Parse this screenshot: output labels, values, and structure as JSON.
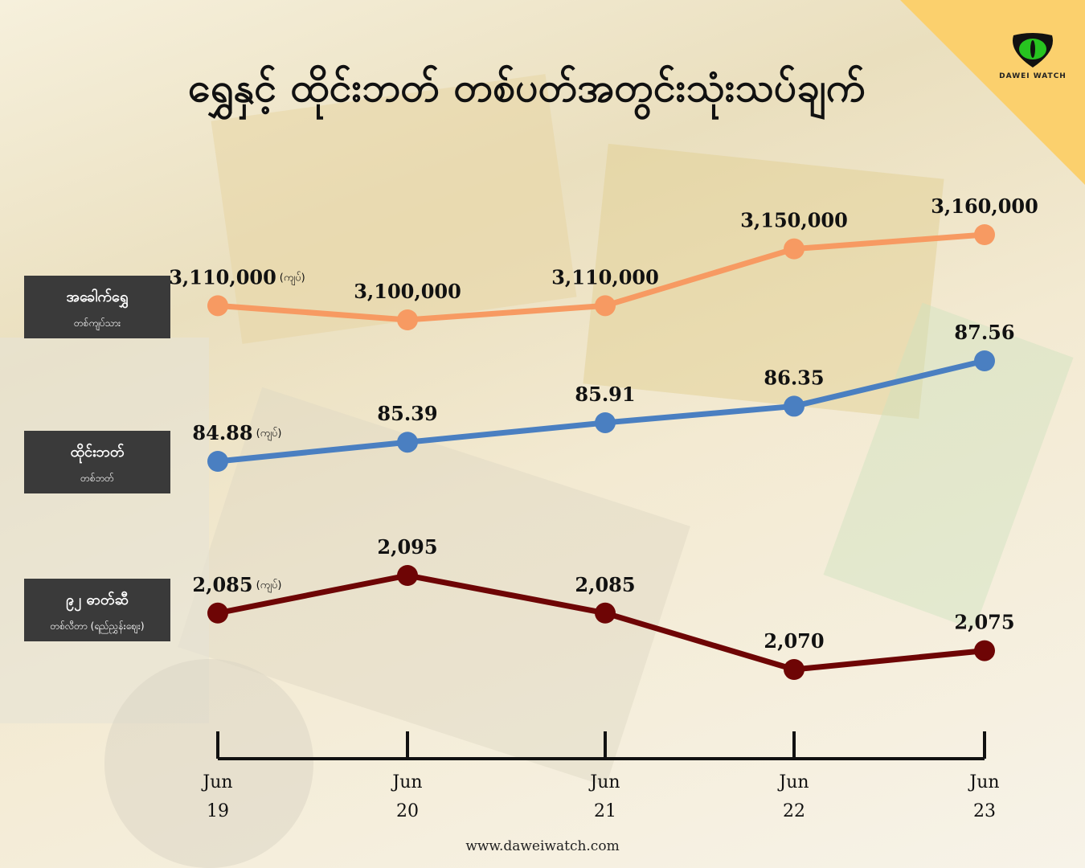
{
  "title": "ရွှေနှင့် ထိုင်းဘတ် တစ်ပတ်အတွင်းသုံးသပ်ချက်",
  "brand": {
    "name": "DAWEI WATCH",
    "icon": "green-eye-icon",
    "accent": "#fbd06d"
  },
  "row_labels": [
    {
      "main": "အခေါက်ရွှေ",
      "sub": "တစ်ကျပ်သား"
    },
    {
      "main": "ထိုင်းဘတ်",
      "sub": "တစ်ဘတ်"
    },
    {
      "main": "၉၂ ဓာတ်ဆီ",
      "sub": "တစ်လီတာ (ရည်ညွှန်းစျေး)"
    }
  ],
  "footer": "www.daweiwatch.com",
  "chart_data": {
    "type": "line",
    "categories": [
      {
        "month": "Jun",
        "day": "19"
      },
      {
        "month": "Jun",
        "day": "20"
      },
      {
        "month": "Jun",
        "day": "21"
      },
      {
        "month": "Jun",
        "day": "22"
      },
      {
        "month": "Jun",
        "day": "23"
      }
    ],
    "unit_note": "(ကျပ်)",
    "series": [
      {
        "values": [
          3110000,
          3100000,
          3110000,
          3150000,
          3160000
        ],
        "labels": [
          "3,110,000",
          "3,100,000",
          "3,110,000",
          "3,150,000",
          "3,160,000"
        ],
        "color": "#f79a62"
      },
      {
        "values": [
          84.88,
          85.39,
          85.91,
          86.35,
          87.56
        ],
        "labels": [
          "84.88",
          "85.39",
          "85.91",
          "86.35",
          "87.56"
        ],
        "color": "#4a7fc1"
      },
      {
        "values": [
          2085,
          2095,
          2085,
          2070,
          2075
        ],
        "labels": [
          "2,085",
          "2,095",
          "2,085",
          "2,070",
          "2,075"
        ],
        "color": "#6e0505"
      }
    ]
  }
}
